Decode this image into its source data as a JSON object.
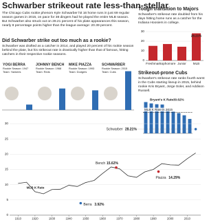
{
  "header": {
    "title": "Schwarber strikeout rate less-than-stellar",
    "intro": "The Chicago Cubs rookie phenom Kyle Schwarber hit 16 home runs in just 69 regular season games in 2015, on pace for 38 dingers had he played the entire MLB season. But Schwarber also struck out on 28.21 percent of his plate appearances this season, nearly 8 percentage points higher than the league average: 20.39 percent."
  },
  "chart_data": [
    {
      "type": "bar",
      "title": "Did Schwarber strike out too much as a rookie?",
      "subtitle": "Schwarber was drafted as a catcher in 2014, and played 20 percent of his rookie season behind the plate, but his strikeout rate is drastically higher than that of famous, hitting catchers in their respective rookie seasons.",
      "categories": [
        "YOGI BERRA",
        "JOHNNY BENCH",
        "MIKE PIAZZA",
        "SCHWARBER"
      ],
      "seasons": [
        "Rookie Season: 1947",
        "Rookie Season: 1968",
        "Rookie Season: 1993",
        "Rookie Season: 2015"
      ],
      "teams": [
        "Team: Yankees",
        "Team: Reds",
        "Team: Dodgers",
        "Team: Cubs"
      ],
      "values": [
        3.92,
        15.62,
        14.29,
        28.21
      ],
      "color": "#2f6db3",
      "ylim": [
        0,
        30
      ]
    },
    {
      "type": "bar",
      "title": "Tough transition to Majors",
      "subtitle": "Schwarber's strikeout rate doubled from his days hitting home runs as a catcher for the Indiana Hoosiers in college.",
      "categories": [
        "Freshman",
        "Sophomore",
        "Junior",
        "MLB"
      ],
      "values": [
        15.2,
        17.1,
        14.3,
        28.21
      ],
      "value_labels": [
        null,
        null,
        null,
        "28.21%"
      ],
      "color": "#c4282d",
      "ylim": [
        0,
        30
      ],
      "yticks": [
        0,
        10,
        20,
        30
      ],
      "grid": true
    },
    {
      "type": "bar",
      "title": "Strikeout-prone Cubs",
      "subtitle": "Schwarber's strikeout rate ranks fourth worst in the Cubs starting lineup in 2015, behind rookie Kris Bryant, Jorge Soler, and Addison Russell.",
      "categories": [
        null,
        null,
        null,
        null,
        null,
        null,
        null,
        null,
        null
      ],
      "values": [
        30.62,
        29.3,
        28.5,
        28.21,
        23.5,
        21.2,
        19.8,
        17.7,
        14.1
      ],
      "value_labels": [
        "30.62%",
        null,
        null,
        null,
        null,
        null,
        null,
        null,
        null
      ],
      "annotation": "Bryant's K Rate",
      "reference": {
        "label": "MLB K Rate in 2015",
        "value": 20.39
      },
      "color": "#2f6db3",
      "ylim": [
        0,
        35
      ]
    },
    {
      "type": "line",
      "x": [
        1910,
        1915,
        1920,
        1925,
        1930,
        1935,
        1940,
        1945,
        1950,
        1955,
        1960,
        1965,
        1970,
        1975,
        1980,
        1985,
        1990,
        1995,
        2000,
        2005,
        2010,
        2015
      ],
      "series": [
        {
          "name": "MLB K Rate",
          "color": "#333333",
          "values": [
            10.4,
            10.8,
            7.7,
            7.0,
            8.4,
            8.5,
            9.8,
            9.4,
            10.7,
            11.4,
            13.7,
            15.8,
            15.2,
            12.9,
            12.4,
            14.2,
            15.0,
            16.9,
            16.5,
            16.4,
            18.5,
            20.4
          ]
        }
      ],
      "highlights": {
        "names": [
          "Berra",
          "Bench",
          "Piazza",
          "Schwarber"
        ],
        "x": [
          1947,
          1968,
          1993,
          2015
        ],
        "values": [
          3.92,
          15.62,
          14.29,
          28.21
        ],
        "value_labels": [
          "3.92%",
          "15.62%",
          "14.29%",
          "28.21%"
        ],
        "colors": [
          "#2f6db3",
          "#c4282d",
          "#c4282d",
          "#2f6db3"
        ]
      },
      "xlim": [
        1905,
        2018
      ],
      "xticks": [
        1910,
        1920,
        1930,
        1940,
        1950,
        1960,
        1970,
        1980,
        1990,
        2000,
        2010
      ],
      "ylim": [
        0,
        30
      ],
      "yticks": [
        0,
        5,
        10,
        15,
        20,
        25,
        30
      ],
      "grid": true
    }
  ]
}
